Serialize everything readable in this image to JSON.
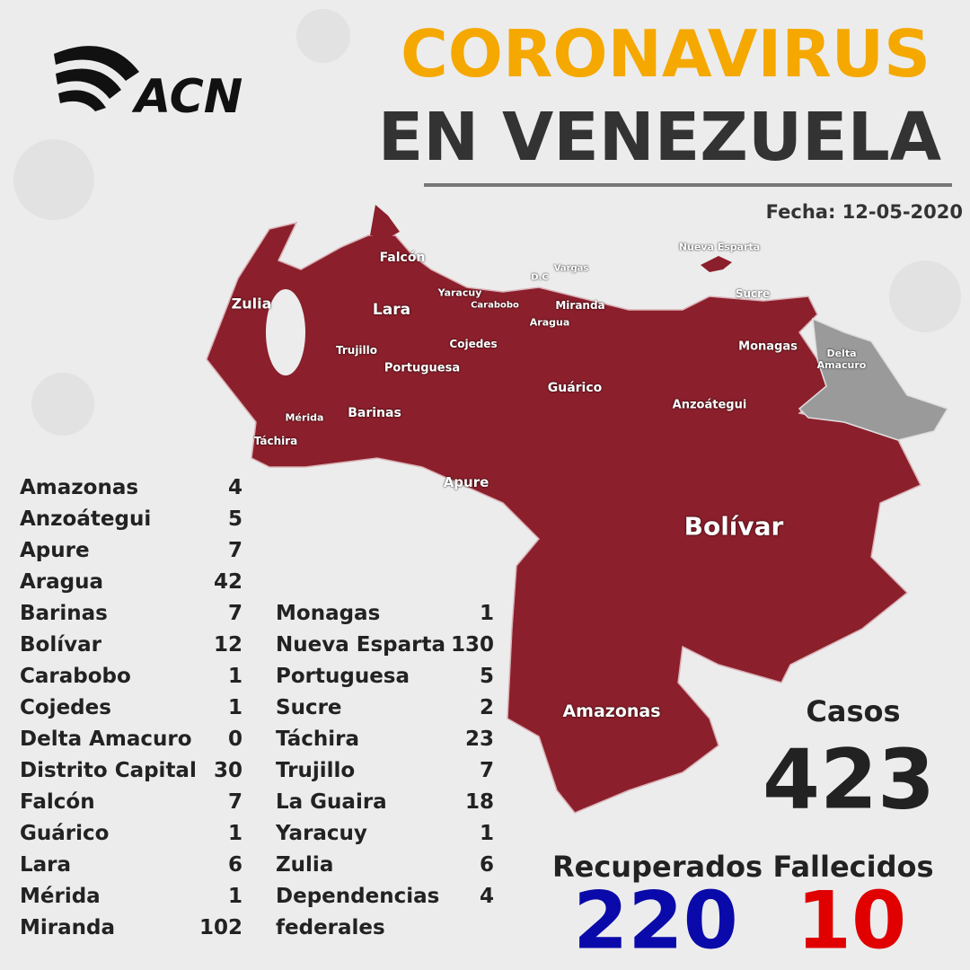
{
  "header": {
    "logo": "ACN",
    "title_line1": "CORONAVIRUS",
    "title_line2": "EN VENEZUELA",
    "date": "Fecha: 12-05-2020"
  },
  "map": {
    "labels": [
      "Falcón",
      "Zulia",
      "Lara",
      "Yaracuy",
      "Carabobo",
      "D.C",
      "Vargas",
      "Miranda",
      "Aragua",
      "Nueva Esparta",
      "Sucre",
      "Monagas",
      "Delta Amacuro",
      "Trujillo",
      "Portuguesa",
      "Cojedes",
      "Guárico",
      "Anzoátegui",
      "Mérida",
      "Barinas",
      "Táchira",
      "Apure",
      "Bolívar",
      "Amazonas"
    ]
  },
  "table_left": {
    "rows": [
      [
        "Amazonas",
        4
      ],
      [
        "Anzoátegui",
        5
      ],
      [
        "Apure",
        7
      ],
      [
        "Aragua",
        42
      ],
      [
        "Barinas",
        7
      ],
      [
        "Bolívar",
        12
      ],
      [
        "Carabobo",
        1
      ],
      [
        "Cojedes",
        1
      ],
      [
        "Delta Amacuro",
        0
      ],
      [
        "Distrito Capital",
        30
      ],
      [
        "Falcón",
        7
      ],
      [
        "Guárico",
        1
      ],
      [
        "Lara",
        6
      ],
      [
        "Mérida",
        1
      ],
      [
        "Miranda",
        102
      ]
    ]
  },
  "table_right": {
    "rows": [
      [
        "Monagas",
        1
      ],
      [
        "Nueva Esparta",
        130
      ],
      [
        "Portuguesa",
        5
      ],
      [
        "Sucre",
        2
      ],
      [
        "Táchira",
        23
      ],
      [
        "Trujillo",
        7
      ],
      [
        "La Guaira",
        18
      ],
      [
        "Yaracuy",
        1
      ],
      [
        "Zulia",
        6
      ],
      [
        "Dependencias federales",
        4
      ]
    ]
  },
  "totals": {
    "cases_label": "Casos",
    "cases": 423,
    "recovered_label": "Recuperados",
    "recovered": 220,
    "deaths_label": "Fallecidos",
    "deaths": 10
  }
}
